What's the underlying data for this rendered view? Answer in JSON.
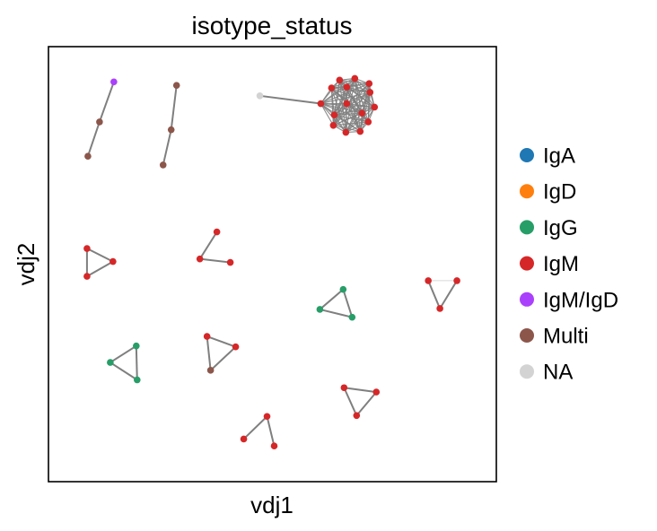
{
  "chart_data": {
    "type": "network-scatter",
    "title": "isotype_status",
    "xlabel": "vdj1",
    "ylabel": "vdj2",
    "grid": false,
    "legend": {
      "placement": "right",
      "entries": [
        {
          "name": "IgA",
          "color": "#1f77b4"
        },
        {
          "name": "IgD",
          "color": "#ff7f0e"
        },
        {
          "name": "IgG",
          "color": "#279e68"
        },
        {
          "name": "IgM",
          "color": "#d62728"
        },
        {
          "name": "IgM/IgD",
          "color": "#aa40fc"
        },
        {
          "name": "Multi",
          "color": "#8c564b"
        },
        {
          "name": "NA",
          "color": "#d3d3d3"
        }
      ]
    },
    "edge_color": "#7f7f7f",
    "xlim": [
      0,
      100
    ],
    "ylim": [
      0,
      100
    ],
    "nodes": [
      {
        "id": 0,
        "x": 14.6,
        "y": 91.9,
        "category": "IgM/IgD"
      },
      {
        "id": 1,
        "x": 11.4,
        "y": 82.7,
        "category": "Multi"
      },
      {
        "id": 2,
        "x": 8.8,
        "y": 74.8,
        "category": "Multi"
      },
      {
        "id": 3,
        "x": 28.6,
        "y": 91.1,
        "category": "Multi"
      },
      {
        "id": 4,
        "x": 27.4,
        "y": 80.9,
        "category": "Multi"
      },
      {
        "id": 5,
        "x": 25.6,
        "y": 72.8,
        "category": "Multi"
      },
      {
        "id": 6,
        "x": 47.2,
        "y": 88.7,
        "category": "NA"
      },
      {
        "id": 7,
        "x": 60.8,
        "y": 86.9,
        "category": "IgM"
      },
      {
        "id": 8,
        "x": 63.2,
        "y": 90.5,
        "category": "IgM"
      },
      {
        "id": 9,
        "x": 65.0,
        "y": 92.3,
        "category": "IgM"
      },
      {
        "id": 10,
        "x": 68.4,
        "y": 92.7,
        "category": "IgM"
      },
      {
        "id": 11,
        "x": 71.6,
        "y": 91.5,
        "category": "IgM"
      },
      {
        "id": 12,
        "x": 71.8,
        "y": 89.5,
        "category": "IgM"
      },
      {
        "id": 13,
        "x": 72.8,
        "y": 86.1,
        "category": "IgM"
      },
      {
        "id": 14,
        "x": 71.4,
        "y": 82.7,
        "category": "IgM"
      },
      {
        "id": 15,
        "x": 69.6,
        "y": 80.5,
        "category": "IgM"
      },
      {
        "id": 16,
        "x": 66.4,
        "y": 80.3,
        "category": "IgM"
      },
      {
        "id": 17,
        "x": 63.6,
        "y": 81.9,
        "category": "IgM"
      },
      {
        "id": 18,
        "x": 63.8,
        "y": 84.3,
        "category": "IgM"
      },
      {
        "id": 19,
        "x": 66.6,
        "y": 90.7,
        "category": "IgM"
      },
      {
        "id": 20,
        "x": 70.0,
        "y": 84.7,
        "category": "IgM"
      },
      {
        "id": 21,
        "x": 66.6,
        "y": 86.9,
        "category": "IgM"
      },
      {
        "id": 22,
        "x": 8.6,
        "y": 53.6,
        "category": "IgM"
      },
      {
        "id": 23,
        "x": 14.4,
        "y": 50.6,
        "category": "IgM"
      },
      {
        "id": 24,
        "x": 8.6,
        "y": 47.2,
        "category": "IgM"
      },
      {
        "id": 25,
        "x": 37.6,
        "y": 57.4,
        "category": "IgM"
      },
      {
        "id": 26,
        "x": 33.8,
        "y": 51.2,
        "category": "IgM"
      },
      {
        "id": 27,
        "x": 40.6,
        "y": 50.4,
        "category": "IgM"
      },
      {
        "id": 28,
        "x": 65.8,
        "y": 44.2,
        "category": "IgG"
      },
      {
        "id": 29,
        "x": 60.6,
        "y": 39.6,
        "category": "IgG"
      },
      {
        "id": 30,
        "x": 67.8,
        "y": 37.8,
        "category": "IgG"
      },
      {
        "id": 31,
        "x": 84.8,
        "y": 46.2,
        "category": "IgM"
      },
      {
        "id": 32,
        "x": 91.2,
        "y": 46.2,
        "category": "IgM"
      },
      {
        "id": 33,
        "x": 87.4,
        "y": 39.8,
        "category": "IgM"
      },
      {
        "id": 34,
        "x": 19.6,
        "y": 31.2,
        "category": "IgG"
      },
      {
        "id": 35,
        "x": 13.8,
        "y": 27.4,
        "category": "IgG"
      },
      {
        "id": 36,
        "x": 19.8,
        "y": 23.4,
        "category": "IgG"
      },
      {
        "id": 37,
        "x": 35.4,
        "y": 33.4,
        "category": "IgM"
      },
      {
        "id": 38,
        "x": 41.8,
        "y": 31.0,
        "category": "IgM"
      },
      {
        "id": 39,
        "x": 36.2,
        "y": 25.6,
        "category": "Multi"
      },
      {
        "id": 40,
        "x": 66.0,
        "y": 21.6,
        "category": "IgM"
      },
      {
        "id": 41,
        "x": 73.2,
        "y": 20.6,
        "category": "IgM"
      },
      {
        "id": 42,
        "x": 68.8,
        "y": 15.2,
        "category": "IgM"
      },
      {
        "id": 43,
        "x": 48.8,
        "y": 15.0,
        "category": "IgM"
      },
      {
        "id": 44,
        "x": 43.6,
        "y": 9.8,
        "category": "IgM"
      },
      {
        "id": 45,
        "x": 50.4,
        "y": 8.2,
        "category": "IgM"
      }
    ],
    "edges": [
      [
        0,
        1
      ],
      [
        1,
        2
      ],
      [
        3,
        4
      ],
      [
        4,
        5
      ],
      [
        6,
        7
      ],
      [
        22,
        23
      ],
      [
        22,
        24
      ],
      [
        23,
        24
      ],
      [
        25,
        26
      ],
      [
        26,
        27
      ],
      [
        28,
        29
      ],
      [
        28,
        30
      ],
      [
        29,
        30
      ],
      [
        31,
        33
      ],
      [
        32,
        33
      ],
      [
        34,
        35
      ],
      [
        34,
        36
      ],
      [
        35,
        36
      ],
      [
        37,
        38
      ],
      [
        37,
        39
      ],
      [
        38,
        39
      ],
      [
        40,
        41
      ],
      [
        40,
        42
      ],
      [
        41,
        42
      ],
      [
        43,
        44
      ],
      [
        43,
        45
      ]
    ],
    "full_clusters": [
      [
        7,
        8,
        9,
        10,
        11,
        12,
        13,
        14,
        15,
        16,
        17,
        18,
        19,
        20,
        21
      ]
    ],
    "faint_edges": [
      [
        31,
        32
      ]
    ]
  }
}
